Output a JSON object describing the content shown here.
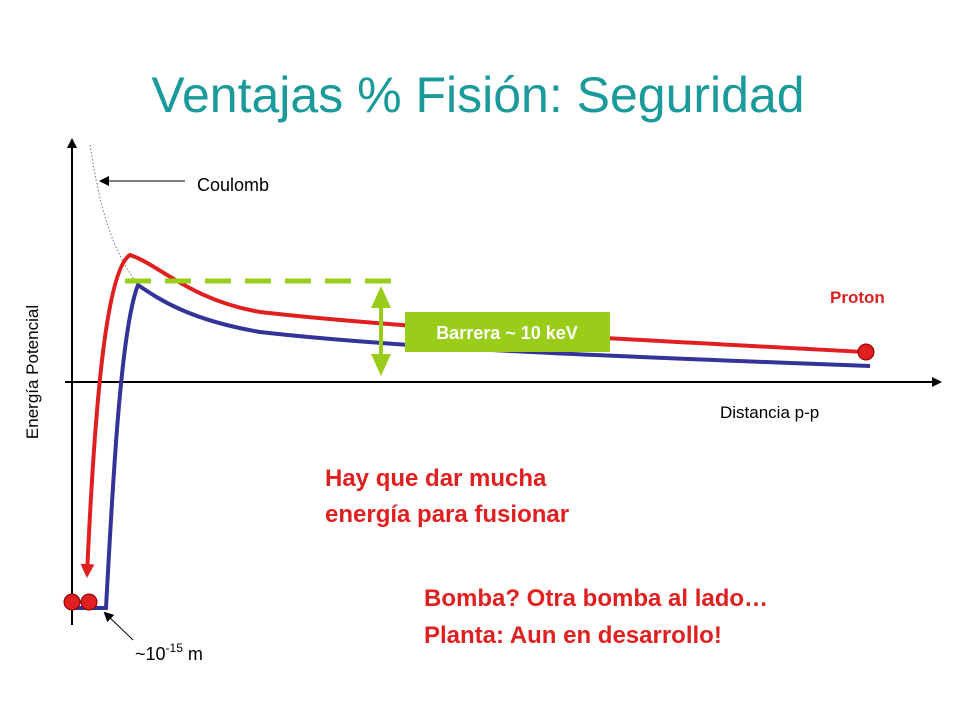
{
  "title": "Ventajas % Fisión: Seguridad",
  "labels": {
    "coulomb": "Coulomb",
    "proton": "Proton",
    "barrier": "Barrera ~ 10 keV",
    "y_axis": "Energía Potencial",
    "x_axis": "Distancia p-p",
    "distance": {
      "base": "~10",
      "exponent": "-15",
      "unit": "m"
    }
  },
  "notes": {
    "energy": [
      "Hay que dar mucha",
      "energía para fusionar"
    ],
    "outlook": [
      "Bomba? Otra bomba al lado…",
      "Planta: Aun en desarrollo!"
    ]
  }
}
